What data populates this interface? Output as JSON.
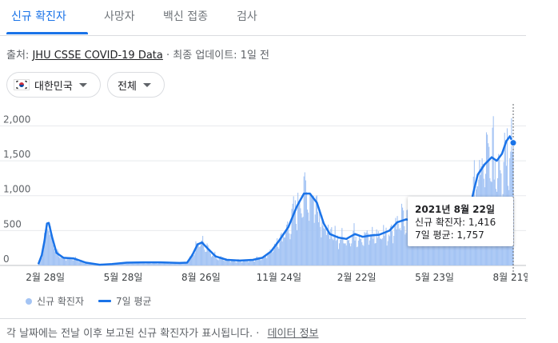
{
  "tabs": [
    {
      "label": "신규 확진자",
      "active": true
    },
    {
      "label": "사망자",
      "active": false
    },
    {
      "label": "백신 접종",
      "active": false
    },
    {
      "label": "검사",
      "active": false
    }
  ],
  "source": {
    "prefix": "출처:",
    "link": "JHU CSSE COVID-19 Data",
    "suffix": "· 최종 업데이트: 1일 전"
  },
  "filters": {
    "country": {
      "label": "대한민국",
      "icon": "south-korea-flag-icon"
    },
    "range": {
      "label": "전체",
      "icon": "caret-down-icon"
    }
  },
  "tooltip": {
    "title": "2021년 8월 22일",
    "cases_line": "신규 확진자: 1,416",
    "avg_line": "7일 평균: 1,757"
  },
  "legend": {
    "cases": "신규 확진자",
    "avg": "7일 평균"
  },
  "footer": {
    "note": "각 날짜에는 전날 이후 보고된 신규 확진자가 표시됩니다.",
    "separator": "·",
    "link": "데이터 정보"
  },
  "colors": {
    "bar": "#a4c4f4",
    "line": "#1a73e8",
    "accent": "#1a73e8"
  },
  "chart_data": {
    "type": "bar",
    "x_start": "2020-02-20",
    "x_end": "2021-08-22",
    "ylim": [
      0,
      2200
    ],
    "yticks": [
      "0",
      "500",
      "1,000",
      "1,500",
      "2,000"
    ],
    "yticks_values": [
      0,
      500,
      1000,
      1500,
      2000
    ],
    "xticks": [
      "2월 28일",
      "5월 28일",
      "8월 26일",
      "11월 24일",
      "2월 22일",
      "5월 23일",
      "8월 21일"
    ],
    "xticks_dates": [
      "2020-02-28",
      "2020-05-28",
      "2020-08-26",
      "2020-11-24",
      "2021-02-22",
      "2021-05-23",
      "2021-08-21"
    ],
    "series": [
      {
        "name": "7일 평균",
        "points": [
          [
            "2020-02-20",
            20
          ],
          [
            "2020-02-24",
            150
          ],
          [
            "2020-02-27",
            350
          ],
          [
            "2020-03-01",
            600
          ],
          [
            "2020-03-03",
            610
          ],
          [
            "2020-03-07",
            400
          ],
          [
            "2020-03-12",
            180
          ],
          [
            "2020-03-20",
            110
          ],
          [
            "2020-04-01",
            100
          ],
          [
            "2020-04-15",
            40
          ],
          [
            "2020-05-01",
            10
          ],
          [
            "2020-05-15",
            20
          ],
          [
            "2020-06-01",
            40
          ],
          [
            "2020-06-20",
            45
          ],
          [
            "2020-07-10",
            45
          ],
          [
            "2020-08-01",
            35
          ],
          [
            "2020-08-10",
            40
          ],
          [
            "2020-08-16",
            150
          ],
          [
            "2020-08-22",
            300
          ],
          [
            "2020-08-27",
            330
          ],
          [
            "2020-09-03",
            240
          ],
          [
            "2020-09-12",
            130
          ],
          [
            "2020-09-25",
            80
          ],
          [
            "2020-10-10",
            70
          ],
          [
            "2020-10-25",
            80
          ],
          [
            "2020-11-05",
            110
          ],
          [
            "2020-11-15",
            200
          ],
          [
            "2020-11-24",
            350
          ],
          [
            "2020-12-05",
            550
          ],
          [
            "2020-12-15",
            850
          ],
          [
            "2020-12-23",
            1030
          ],
          [
            "2020-12-30",
            1030
          ],
          [
            "2021-01-07",
            900
          ],
          [
            "2021-01-15",
            600
          ],
          [
            "2021-01-22",
            450
          ],
          [
            "2021-02-01",
            400
          ],
          [
            "2021-02-10",
            380
          ],
          [
            "2021-02-20",
            450
          ],
          [
            "2021-03-01",
            410
          ],
          [
            "2021-03-10",
            430
          ],
          [
            "2021-03-20",
            440
          ],
          [
            "2021-04-01",
            500
          ],
          [
            "2021-04-10",
            620
          ],
          [
            "2021-04-20",
            660
          ],
          [
            "2021-05-01",
            640
          ],
          [
            "2021-05-10",
            610
          ],
          [
            "2021-05-20",
            580
          ],
          [
            "2021-06-01",
            600
          ],
          [
            "2021-06-15",
            560
          ],
          [
            "2021-06-25",
            590
          ],
          [
            "2021-07-01",
            700
          ],
          [
            "2021-07-07",
            1050
          ],
          [
            "2021-07-12",
            1300
          ],
          [
            "2021-07-20",
            1450
          ],
          [
            "2021-07-28",
            1550
          ],
          [
            "2021-08-03",
            1500
          ],
          [
            "2021-08-09",
            1600
          ],
          [
            "2021-08-14",
            1780
          ],
          [
            "2021-08-18",
            1850
          ],
          [
            "2021-08-22",
            1757
          ]
        ]
      }
    ],
    "highlight": {
      "date": "2021-08-22",
      "cases": 1416,
      "avg": 1757
    }
  }
}
